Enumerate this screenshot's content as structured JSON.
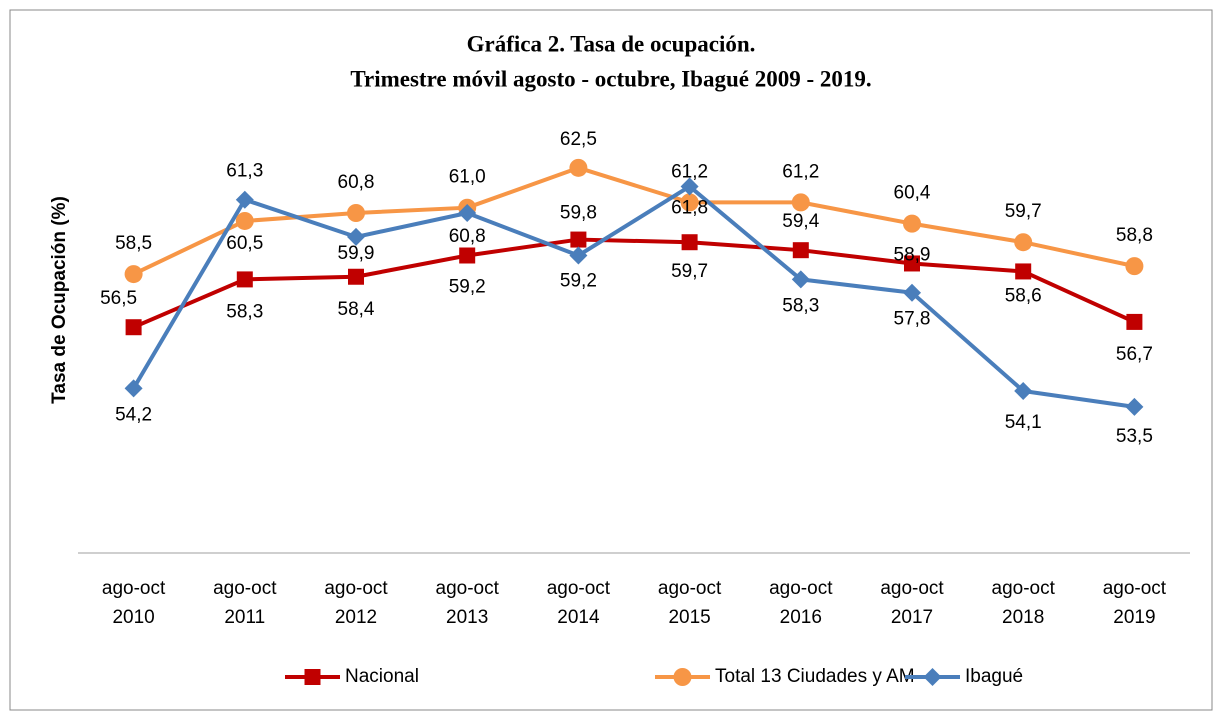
{
  "chart_data": {
    "type": "line",
    "title": "Gráfica 2. Tasa de ocupación.",
    "subtitle": "Trimestre móvil agosto - octubre, Ibagué 2009 - 2019.",
    "y_label": "Tasa de Ocupación (%)",
    "categories": [
      "ago-oct 2010",
      "ago-oct 2011",
      "ago-oct 2012",
      "ago-oct 2013",
      "ago-oct 2014",
      "ago-oct 2015",
      "ago-oct 2016",
      "ago-oct 2017",
      "ago-oct 2018",
      "ago-oct 2019"
    ],
    "ylim": [
      48,
      64
    ],
    "series": [
      {
        "name": "Nacional",
        "color": "#c00000",
        "marker": "square",
        "values": [
          56.5,
          58.3,
          58.4,
          59.2,
          59.8,
          59.7,
          59.4,
          58.9,
          58.6,
          56.7
        ],
        "value_labels": [
          "56,5",
          "58,3",
          "58,4",
          "59,2",
          "59,8",
          "59,7",
          "59,4",
          "58,9",
          "58,6",
          "56,7"
        ]
      },
      {
        "name": "Total 13 Ciudades y AM",
        "color": "#f79646",
        "marker": "circle",
        "values": [
          58.5,
          60.5,
          60.8,
          61.0,
          62.5,
          61.2,
          61.2,
          60.4,
          59.7,
          58.8
        ],
        "value_labels": [
          "58,5",
          "60,5",
          "60,8",
          "61,0",
          "62,5",
          "61,2",
          "61,2",
          "60,4",
          "59,7",
          "58,8"
        ]
      },
      {
        "name": "Ibagué",
        "color": "#4a7ebb",
        "marker": "diamond",
        "values": [
          54.2,
          61.3,
          59.9,
          60.8,
          59.2,
          61.8,
          58.3,
          57.8,
          54.1,
          53.5
        ],
        "value_labels": [
          "54,2",
          "61,3",
          "59,9",
          "60,8",
          "59,2",
          "61,8",
          "58,3",
          "57,8",
          "54,1",
          "53,5"
        ]
      }
    ],
    "legend": "bottom"
  }
}
